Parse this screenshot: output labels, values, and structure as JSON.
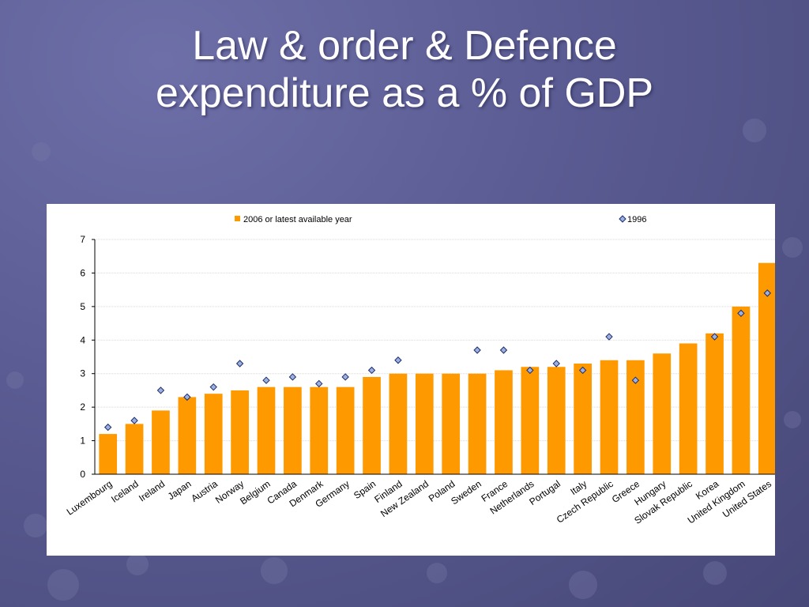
{
  "slide": {
    "title_line1": "Law & order & Defence",
    "title_line2": "expenditure as a % of GDP"
  },
  "colors": {
    "bar": "#ff9900",
    "marker_fill": "#9ab2e0",
    "marker_stroke": "#1f2a6b",
    "background": "#5a5b92"
  },
  "chart_data": {
    "type": "bar",
    "title": "Law & order & Defence expenditure as a % of GDP",
    "ylim": [
      0,
      7
    ],
    "yticks": [
      0,
      1,
      2,
      3,
      4,
      5,
      6,
      7
    ],
    "grid": true,
    "legend_position": "top",
    "categories": [
      "Luxembourg",
      "Iceland",
      "Ireland",
      "Japan",
      "Austria",
      "Norway",
      "Belgium",
      "Canada",
      "Denmark",
      "Germany",
      "Spain",
      "Finland",
      "New Zealand",
      "Poland",
      "Sweden",
      "France",
      "Netherlands",
      "Portugal",
      "Italy",
      "Czech Republic",
      "Greece",
      "Hungary",
      "Slovak Republic",
      "Korea",
      "United Kingdom",
      "United States"
    ],
    "series": [
      {
        "name": "2006 or latest available year",
        "kind": "bar",
        "values": [
          1.2,
          1.5,
          1.9,
          2.3,
          2.4,
          2.5,
          2.6,
          2.6,
          2.6,
          2.6,
          2.9,
          3.0,
          3.0,
          3.0,
          3.0,
          3.1,
          3.2,
          3.2,
          3.3,
          3.4,
          3.4,
          3.6,
          3.9,
          4.2,
          5.0,
          6.3
        ]
      },
      {
        "name": "1996",
        "kind": "marker",
        "values": [
          1.4,
          1.6,
          2.5,
          2.3,
          2.6,
          3.3,
          2.8,
          2.9,
          2.7,
          2.9,
          3.1,
          3.4,
          null,
          null,
          3.7,
          3.7,
          3.1,
          3.3,
          3.1,
          4.1,
          2.8,
          null,
          null,
          4.1,
          4.8,
          5.4
        ]
      }
    ]
  }
}
